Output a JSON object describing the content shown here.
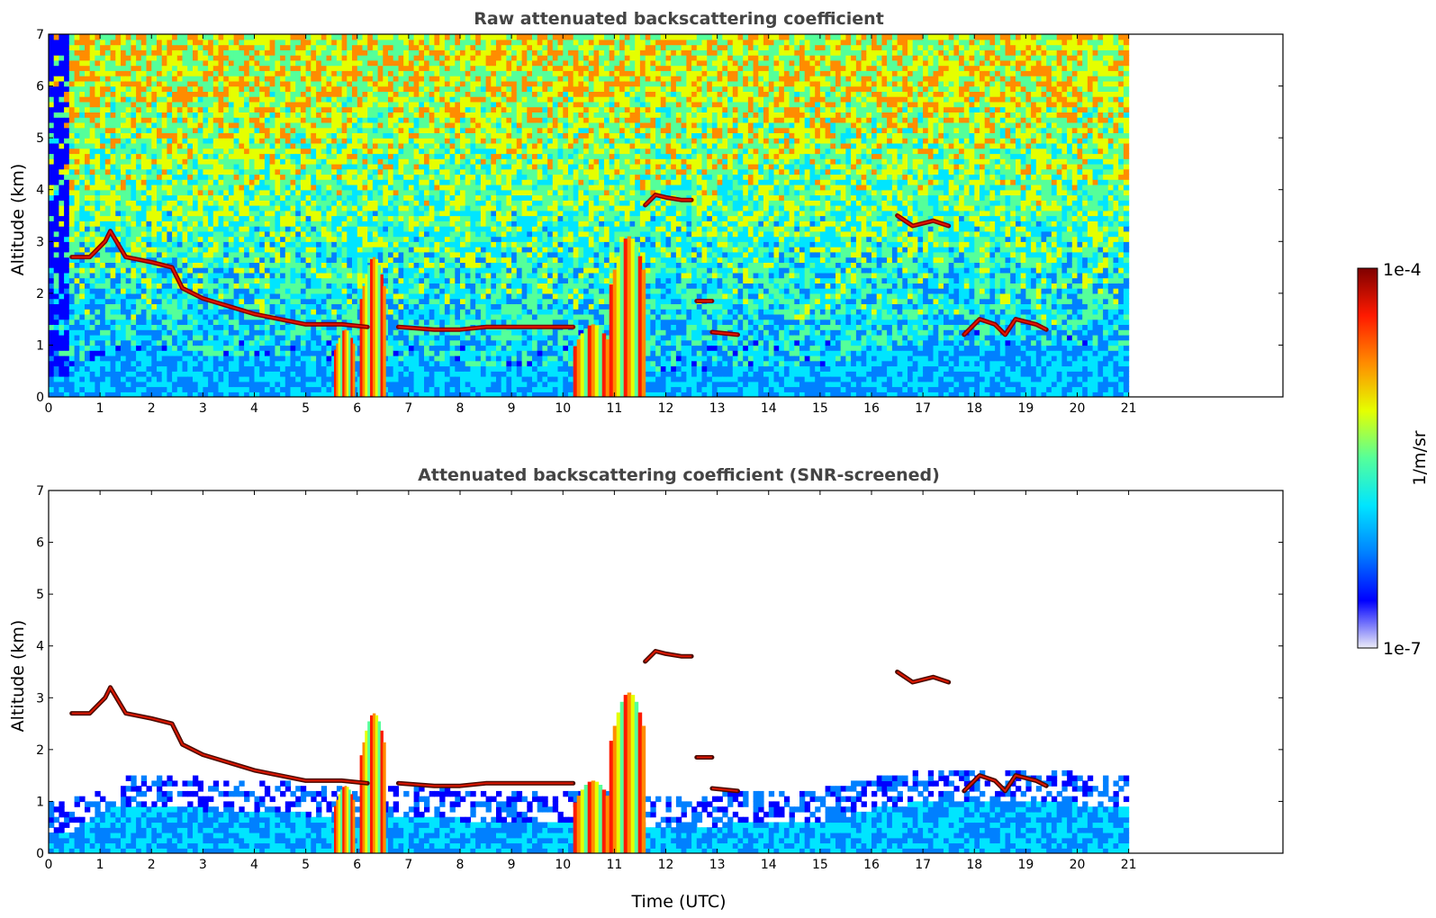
{
  "chart_data": [
    {
      "type": "heatmap",
      "title": "Raw attenuated backscattering coefficient",
      "xlabel": "",
      "ylabel": "Altitude (km)",
      "xlim": [
        0,
        24
      ],
      "ylim": [
        0,
        7
      ],
      "x_ticks": [
        "0",
        "1",
        "2",
        "3",
        "4",
        "5",
        "6",
        "7",
        "8",
        "9",
        "10",
        "11",
        "12",
        "13",
        "14",
        "15",
        "16",
        "17",
        "18",
        "19",
        "20",
        "21"
      ],
      "y_ticks": [
        "0",
        "1",
        "2",
        "3",
        "4",
        "5",
        "6",
        "7"
      ],
      "data_end_time": 21,
      "layers": [
        {
          "name": "boundary_layer_top",
          "x": [
            0.45,
            1.0,
            1.5,
            2.0,
            2.5,
            3.0,
            4.0,
            5.0,
            6.0,
            7.0,
            8.0,
            9.0,
            10.0,
            11.0,
            12.0,
            13.0,
            14.0,
            15.0,
            16.0,
            17.0,
            18.0,
            19.0,
            20.0,
            21.0
          ],
          "y": [
            0.4,
            0.8,
            0.9,
            0.9,
            0.9,
            0.8,
            0.75,
            0.7,
            0.7,
            0.65,
            0.6,
            0.55,
            0.6,
            0.5,
            0.45,
            0.5,
            0.55,
            0.6,
            0.8,
            0.95,
            1.0,
            1.0,
            0.9,
            0.9
          ]
        },
        {
          "name": "cloud_layer_1",
          "x": [
            0.45,
            0.8,
            1.1,
            1.2,
            1.5,
            2.0,
            2.4,
            2.6,
            3.0,
            4.0,
            5.0,
            5.7,
            6.2
          ],
          "y": [
            2.7,
            2.7,
            3.0,
            3.2,
            2.7,
            2.6,
            2.5,
            2.1,
            1.9,
            1.6,
            1.4,
            1.4,
            1.35
          ]
        },
        {
          "name": "cloud_layer_2",
          "x": [
            6.8,
            7.5,
            8.0,
            8.5,
            9.0,
            9.5,
            10.0,
            10.2
          ],
          "y": [
            1.35,
            1.3,
            1.3,
            1.35,
            1.35,
            1.35,
            1.35,
            1.35
          ]
        },
        {
          "name": "cloud_layer_3",
          "x": [
            11.6,
            11.8,
            12.0,
            12.3,
            12.5
          ],
          "y": [
            3.7,
            3.9,
            3.85,
            3.8,
            3.8
          ]
        },
        {
          "name": "cloud_layer_4",
          "x": [
            12.6,
            12.9
          ],
          "y": [
            1.85,
            1.85
          ]
        },
        {
          "name": "cloud_layer_5",
          "x": [
            12.9,
            13.4
          ],
          "y": [
            1.25,
            1.2
          ]
        },
        {
          "name": "cloud_layer_6",
          "x": [
            16.5,
            16.8,
            17.2,
            17.5
          ],
          "y": [
            3.5,
            3.3,
            3.4,
            3.3
          ]
        },
        {
          "name": "cloud_layer_7",
          "x": [
            17.8,
            18.1,
            18.4,
            18.6,
            18.8,
            19.2,
            19.4
          ],
          "y": [
            1.2,
            1.5,
            1.4,
            1.2,
            1.5,
            1.4,
            1.3
          ]
        }
      ],
      "precipitation": [
        {
          "t0": 5.55,
          "t1": 5.95,
          "top": 1.3
        },
        {
          "t0": 6.05,
          "t1": 6.55,
          "top": 2.7
        },
        {
          "t0": 10.2,
          "t1": 10.9,
          "top": 1.4
        },
        {
          "t0": 10.9,
          "t1": 11.6,
          "top": 3.1
        }
      ],
      "colorbar": {
        "label": "1/m/sr",
        "max_label": "1e-4",
        "min_label": "1e-7",
        "scale": "log",
        "range": [
          1e-07,
          0.0001
        ]
      }
    },
    {
      "type": "heatmap",
      "title": "Attenuated backscattering coefficient (SNR-screened)",
      "xlabel": "Time (UTC)",
      "ylabel": "Altitude (km)",
      "xlim": [
        0,
        24
      ],
      "ylim": [
        0,
        7
      ],
      "x_ticks": [
        "0",
        "1",
        "2",
        "3",
        "4",
        "5",
        "6",
        "7",
        "8",
        "9",
        "10",
        "11",
        "12",
        "13",
        "14",
        "15",
        "16",
        "17",
        "18",
        "19",
        "20",
        "21"
      ],
      "y_ticks": [
        "0",
        "1",
        "2",
        "3",
        "4",
        "5",
        "6",
        "7"
      ],
      "data_end_time": 21
    }
  ],
  "colors": {
    "colormap": [
      "#ececf7",
      "#0000ff",
      "#0080ff",
      "#00e5ff",
      "#55ff9a",
      "#e5ff00",
      "#ff8c00",
      "#ff1a00",
      "#7f0000"
    ],
    "cloud_top_dark": "#4a0a00",
    "axis": "#000000",
    "title": "#444444"
  }
}
